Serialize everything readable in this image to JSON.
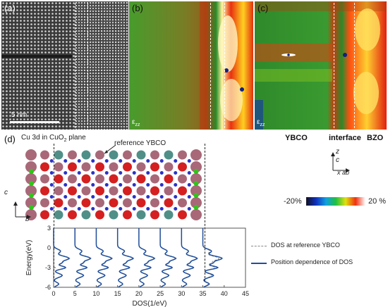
{
  "panels": {
    "a": {
      "label": "(a)",
      "scale_bar": "5 nm"
    },
    "b": {
      "label": "(b)",
      "strain_label": "ε",
      "strain_sub": "zz"
    },
    "c": {
      "label": "(c)",
      "strain_label": "ε",
      "strain_sub": "zz"
    },
    "d": {
      "label": "(d)",
      "caption_main": "Cu 3d in CuO",
      "caption_sub": "2",
      "caption_tail": " plane",
      "ref_label": "reference YBCO"
    }
  },
  "region_labels": {
    "ybco": "YBCO",
    "interface": "interface",
    "bzo": "BZO"
  },
  "axes_top": {
    "z": "z",
    "c": "c",
    "xab": "x ab"
  },
  "axes_left": {
    "c": "c",
    "b": "b"
  },
  "colorbar": {
    "min_label": "-20%",
    "max_label": "20 %"
  },
  "chart_data": {
    "type": "line",
    "xlabel": "DOS(1/eV)",
    "ylabel": "Energy(eV)",
    "xlim": [
      0,
      45
    ],
    "ylim": [
      -6,
      3
    ],
    "xticks": [
      0,
      5,
      10,
      15,
      20,
      25,
      30,
      35,
      40,
      45
    ],
    "yticks": [
      3,
      0,
      -3,
      -6
    ],
    "series": [
      {
        "name": "DOS at reference YBCO",
        "offsets": [
          0,
          5,
          10,
          15,
          20,
          25,
          30,
          35
        ],
        "style": "dashed"
      },
      {
        "name": "Position dependence of DOS",
        "offsets": [
          0,
          5,
          10,
          15,
          20,
          25,
          30,
          35
        ],
        "style": "solid"
      }
    ]
  },
  "colors": {
    "accent_blue": "#1f4e9a",
    "atom_red": "#d42020",
    "atom_teal": "#4f8f88",
    "atom_mauve": "#a86878",
    "atom_blue": "#2a32c8",
    "atom_green": "#33c41c"
  }
}
